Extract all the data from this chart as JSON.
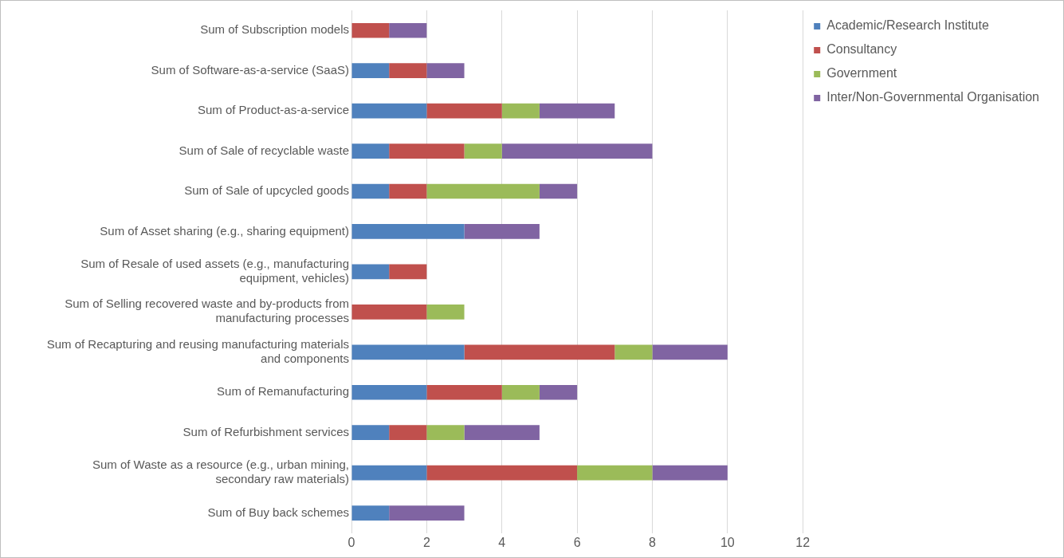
{
  "chart_data": {
    "type": "bar",
    "orientation": "horizontal",
    "stacked": true,
    "categories": [
      "Sum of Subscription models",
      "Sum of Software-as-a-service (SaaS)",
      "Sum of Product-as-a-service",
      "Sum of Sale of recyclable waste",
      "Sum of Sale of upcycled goods",
      "Sum of Asset sharing (e.g., sharing equipment)",
      "Sum of Resale of used assets (e.g., manufacturing equipment, vehicles)",
      "Sum of Selling recovered waste and by-products from manufacturing processes",
      "Sum of Recapturing and reusing manufacturing materials and components",
      "Sum of Remanufacturing",
      "Sum of Refurbishment services",
      "Sum of Waste as a resource (e.g., urban mining, secondary raw materials)",
      "Sum of Buy back schemes"
    ],
    "series": [
      {
        "name": "Academic/Research Institute",
        "color": "#4f81bd",
        "values": [
          0,
          1,
          2,
          1,
          1,
          3,
          1,
          0,
          3,
          2,
          1,
          2,
          1
        ]
      },
      {
        "name": "Consultancy",
        "color": "#c0504d",
        "values": [
          1,
          1,
          2,
          2,
          1,
          0,
          1,
          2,
          4,
          2,
          1,
          4,
          0
        ]
      },
      {
        "name": "Government",
        "color": "#9bbb59",
        "values": [
          0,
          0,
          1,
          1,
          3,
          0,
          0,
          1,
          1,
          1,
          1,
          2,
          0
        ]
      },
      {
        "name": "Inter/Non-Governmental Organisation",
        "color": "#8064a2",
        "values": [
          1,
          1,
          2,
          4,
          1,
          2,
          0,
          0,
          2,
          1,
          2,
          2,
          2
        ]
      }
    ],
    "xlim": [
      0,
      12
    ],
    "xticks": [
      0,
      2,
      4,
      6,
      8,
      10,
      12
    ],
    "grid": "x",
    "legend": "top right"
  }
}
